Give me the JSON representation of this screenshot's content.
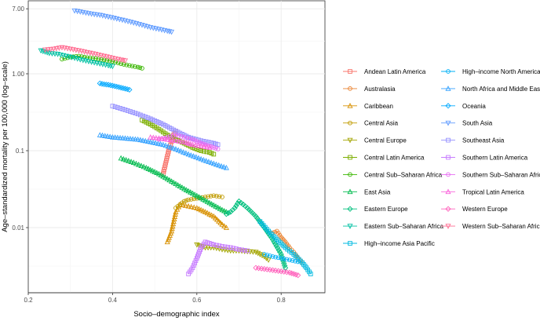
{
  "chart_data": {
    "type": "line",
    "title": "",
    "xlabel": "Socio–demographic index",
    "ylabel": "Age–standardized mortality per 100,000 (log–scale)",
    "xlim": [
      0.2,
      0.9
    ],
    "ylim": [
      0.0014,
      8.5
    ],
    "yscale": "log",
    "x_ticks": [
      0.2,
      0.4,
      0.6,
      0.8
    ],
    "x_tick_labels": [
      "0.2",
      "0.4",
      "0.6",
      "0.8"
    ],
    "y_ticks": [
      7.0,
      1.0,
      0.1,
      0.01
    ],
    "y_tick_labels": [
      "7.00",
      "1.00",
      "0.1",
      "0.01"
    ],
    "grid": true,
    "legend_position": "right",
    "series": [
      {
        "name": "Andean Latin America",
        "color": "#F8766D",
        "marker": "square",
        "x": [
          0.52,
          0.525,
          0.53,
          0.535,
          0.54,
          0.545,
          0.55
        ],
        "y": [
          0.05,
          0.065,
          0.085,
          0.11,
          0.13,
          0.16,
          0.18
        ]
      },
      {
        "name": "Australasia",
        "color": "#EA8331",
        "marker": "circle",
        "x": [
          0.78,
          0.79,
          0.8,
          0.81,
          0.82,
          0.83,
          0.84,
          0.85
        ],
        "y": [
          0.0085,
          0.009,
          0.0075,
          0.0065,
          0.0055,
          0.0048,
          0.004,
          0.0035
        ]
      },
      {
        "name": "Caribbean",
        "color": "#D89000",
        "marker": "triangle",
        "x": [
          0.53,
          0.54,
          0.55,
          0.56,
          0.58,
          0.6,
          0.62,
          0.64,
          0.66,
          0.67
        ],
        "y": [
          0.0065,
          0.009,
          0.016,
          0.02,
          0.019,
          0.018,
          0.016,
          0.014,
          0.011,
          0.01
        ]
      },
      {
        "name": "Central Asia",
        "color": "#C09B00",
        "marker": "circle",
        "x": [
          0.55,
          0.56,
          0.57,
          0.58,
          0.6,
          0.62,
          0.64,
          0.66
        ],
        "y": [
          0.018,
          0.02,
          0.022,
          0.023,
          0.024,
          0.025,
          0.026,
          0.025
        ]
      },
      {
        "name": "Central Europe",
        "color": "#A3A500",
        "marker": "triangle-down",
        "x": [
          0.6,
          0.62,
          0.64,
          0.66,
          0.68,
          0.7,
          0.72,
          0.74,
          0.76,
          0.77
        ],
        "y": [
          0.006,
          0.0055,
          0.0055,
          0.0052,
          0.005,
          0.005,
          0.0049,
          0.0048,
          0.0042,
          0.0038
        ]
      },
      {
        "name": "Central Latin America",
        "color": "#7CAE00",
        "marker": "square",
        "x": [
          0.47,
          0.49,
          0.51,
          0.53,
          0.55,
          0.57,
          0.59,
          0.61,
          0.63,
          0.64
        ],
        "y": [
          0.25,
          0.22,
          0.19,
          0.16,
          0.14,
          0.125,
          0.11,
          0.1,
          0.095,
          0.09
        ]
      },
      {
        "name": "Central Sub–Saharan Africa",
        "color": "#39B600",
        "marker": "circle",
        "x": [
          0.28,
          0.3,
          0.32,
          0.34,
          0.36,
          0.38,
          0.4,
          0.42,
          0.44,
          0.46,
          0.47
        ],
        "y": [
          1.55,
          1.65,
          1.7,
          1.62,
          1.58,
          1.52,
          1.45,
          1.35,
          1.28,
          1.22,
          1.18
        ]
      },
      {
        "name": "East Asia",
        "color": "#00BB4E",
        "marker": "triangle",
        "x": [
          0.42,
          0.45,
          0.48,
          0.51,
          0.54,
          0.57,
          0.6,
          0.63,
          0.66,
          0.67
        ],
        "y": [
          0.08,
          0.07,
          0.06,
          0.05,
          0.04,
          0.032,
          0.026,
          0.021,
          0.017,
          0.016
        ]
      },
      {
        "name": "Eastern Europe",
        "color": "#00BF7D",
        "marker": "diamond",
        "x": [
          0.67,
          0.68,
          0.69,
          0.7,
          0.71,
          0.72,
          0.74,
          0.76,
          0.78,
          0.8,
          0.81
        ],
        "y": [
          0.015,
          0.016,
          0.018,
          0.022,
          0.02,
          0.018,
          0.014,
          0.01,
          0.007,
          0.0045,
          0.003
        ]
      },
      {
        "name": "Eastern Sub–Saharan Africa",
        "color": "#00C1A3",
        "marker": "triangle-down",
        "x": [
          0.23,
          0.25,
          0.27,
          0.29,
          0.31,
          0.33,
          0.35,
          0.37,
          0.39,
          0.4
        ],
        "y": [
          2.0,
          1.85,
          1.8,
          1.7,
          1.6,
          1.5,
          1.42,
          1.35,
          1.28,
          1.25
        ]
      },
      {
        "name": "High–income Asia Pacific",
        "color": "#00BAE0",
        "marker": "square",
        "x": [
          0.75,
          0.77,
          0.79,
          0.81,
          0.83,
          0.85,
          0.86,
          0.87
        ],
        "y": [
          0.012,
          0.009,
          0.007,
          0.0055,
          0.0045,
          0.0035,
          0.003,
          0.0025
        ]
      },
      {
        "name": "High–income North America",
        "color": "#00B0F6",
        "marker": "circle",
        "x": [
          0.76,
          0.78,
          0.8,
          0.82,
          0.84
        ],
        "y": [
          0.0045,
          0.0042,
          0.004,
          0.0038,
          0.0036
        ]
      },
      {
        "name": "North Africa and Middle East",
        "color": "#35A2FF",
        "marker": "triangle",
        "x": [
          0.37,
          0.4,
          0.43,
          0.46,
          0.49,
          0.52,
          0.55,
          0.58,
          0.61,
          0.64,
          0.67
        ],
        "y": [
          0.16,
          0.15,
          0.145,
          0.14,
          0.13,
          0.12,
          0.105,
          0.09,
          0.078,
          0.068,
          0.06
        ]
      },
      {
        "name": "Oceania",
        "color": "#00A9FF",
        "marker": "diamond",
        "x": [
          0.37,
          0.38,
          0.39,
          0.4,
          0.41,
          0.42,
          0.43,
          0.44
        ],
        "y": [
          0.75,
          0.73,
          0.72,
          0.7,
          0.68,
          0.66,
          0.64,
          0.62
        ]
      },
      {
        "name": "South Asia",
        "color": "#619CFF",
        "marker": "triangle-down",
        "x": [
          0.31,
          0.33,
          0.35,
          0.37,
          0.39,
          0.41,
          0.43,
          0.45,
          0.47,
          0.49,
          0.51,
          0.53,
          0.54
        ],
        "y": [
          6.6,
          6.3,
          6.0,
          5.8,
          5.5,
          5.2,
          4.9,
          4.6,
          4.3,
          4.0,
          3.8,
          3.6,
          3.5
        ]
      },
      {
        "name": "Southeast Asia",
        "color": "#9590FF",
        "marker": "square",
        "x": [
          0.4,
          0.43,
          0.46,
          0.49,
          0.52,
          0.55,
          0.58,
          0.61,
          0.64,
          0.65
        ],
        "y": [
          0.38,
          0.34,
          0.3,
          0.26,
          0.22,
          0.18,
          0.15,
          0.135,
          0.125,
          0.12
        ]
      },
      {
        "name": "Southern Latin America",
        "color": "#C77CFF",
        "marker": "square",
        "x": [
          0.58,
          0.59,
          0.6,
          0.61,
          0.62,
          0.64,
          0.66,
          0.68,
          0.7,
          0.72
        ],
        "y": [
          0.0025,
          0.003,
          0.004,
          0.0055,
          0.0065,
          0.006,
          0.0057,
          0.0055,
          0.0052,
          0.005
        ]
      },
      {
        "name": "Southern Sub–Saharan Africa",
        "color": "#E76BF3",
        "marker": "circle",
        "x": [
          0.51,
          0.53,
          0.55,
          0.57,
          0.59,
          0.61,
          0.63,
          0.65
        ],
        "y": [
          0.14,
          0.15,
          0.16,
          0.15,
          0.14,
          0.125,
          0.115,
          0.105
        ]
      },
      {
        "name": "Tropical Latin America",
        "color": "#FA62DB",
        "marker": "triangle",
        "x": [
          0.49,
          0.51,
          0.53,
          0.55,
          0.57,
          0.59,
          0.61,
          0.63
        ],
        "y": [
          0.15,
          0.145,
          0.14,
          0.135,
          0.13,
          0.12,
          0.115,
          0.11
        ]
      },
      {
        "name": "Western Europe",
        "color": "#FF62BC",
        "marker": "diamond",
        "x": [
          0.74,
          0.76,
          0.78,
          0.8,
          0.82,
          0.84
        ],
        "y": [
          0.003,
          0.0029,
          0.0028,
          0.0027,
          0.0026,
          0.0024
        ]
      },
      {
        "name": "Western Sub–Saharan Africa",
        "color": "#FF6C91",
        "marker": "triangle-down",
        "x": [
          0.24,
          0.26,
          0.28,
          0.3,
          0.32,
          0.34,
          0.36,
          0.38,
          0.4,
          0.42,
          0.43
        ],
        "y": [
          2.05,
          2.1,
          2.2,
          2.1,
          2.0,
          1.9,
          1.8,
          1.7,
          1.6,
          1.52,
          1.48
        ]
      }
    ]
  }
}
